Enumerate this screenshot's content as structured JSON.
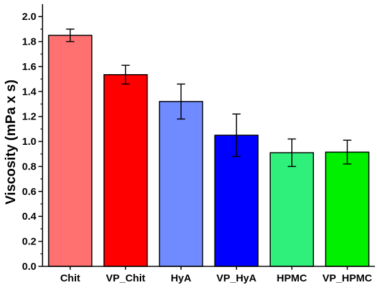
{
  "chart_data": {
    "type": "bar",
    "categories": [
      "Chit",
      "VP_Chit",
      "HyA",
      "VP_HyA",
      "HPMC",
      "VP_HPMC"
    ],
    "values": [
      1.85,
      1.535,
      1.32,
      1.05,
      0.91,
      0.915
    ],
    "error": [
      0.05,
      0.075,
      0.14,
      0.17,
      0.11,
      0.095
    ],
    "colors": [
      "#ff7070",
      "#ff0000",
      "#6f8bff",
      "#0000ff",
      "#2ef07a",
      "#00f000"
    ],
    "xlabel": "",
    "ylabel": "Viscosity (mPa x s)",
    "ylim": [
      0,
      2.1
    ],
    "yticks": [
      "0.0",
      "0.2",
      "0.4",
      "0.6",
      "0.8",
      "1.0",
      "1.2",
      "1.4",
      "1.6",
      "1.8",
      "2.0"
    ],
    "grid": false,
    "legend": "none"
  }
}
